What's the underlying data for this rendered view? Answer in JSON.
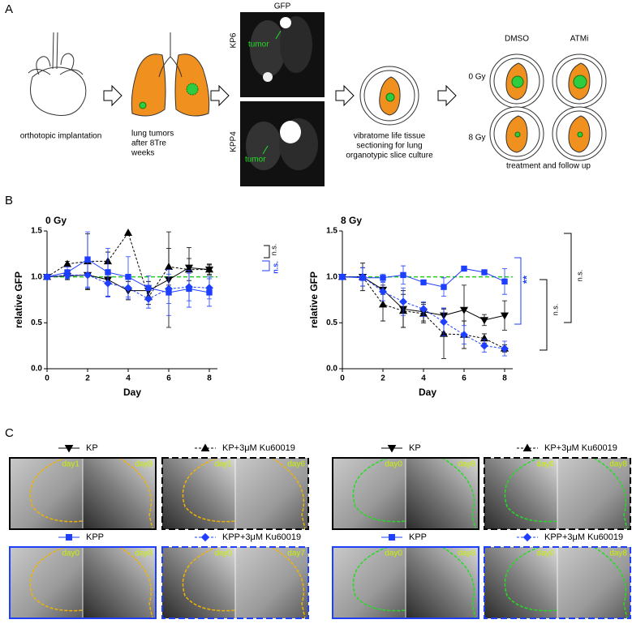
{
  "panel_labels": [
    "A",
    "B",
    "C"
  ],
  "panel_a": {
    "implant_label": "orthotopic implantation",
    "lung_label": [
      "lung tumors",
      "after 8Tre",
      "weeks"
    ],
    "imaging_title": "GFP",
    "images": [
      {
        "name": "KP6",
        "tumor": "tumor"
      },
      {
        "name": "KPP4",
        "tumor": "tumor"
      }
    ],
    "slice_label": [
      "vibratome life tissue",
      "sectioning for lung",
      "organotypic slice culture"
    ],
    "treatments": [
      "DMSO",
      "ATMi"
    ],
    "doses": [
      "0 Gy",
      "8 Gy"
    ],
    "follow_label": "treatment and follow up"
  },
  "chart_data": [
    {
      "type": "line",
      "title": "0 Gy",
      "x_label": "Day",
      "y_label": "relative GFP",
      "x": [
        0,
        1,
        2,
        3,
        4,
        5,
        6,
        7,
        8
      ],
      "xlim": [
        0,
        8.4
      ],
      "xticks": [
        0,
        2,
        4,
        6,
        8
      ],
      "ylim": [
        0,
        1.5
      ],
      "yticks": [
        {
          "value": 0,
          "label": "0.0"
        },
        {
          "value": 0.5,
          "label": "0.5"
        },
        {
          "value": 1,
          "label": "1.0"
        },
        {
          "value": 1.5,
          "label": "1.5"
        }
      ],
      "reference_line": 1,
      "reference_color": "#22cc22",
      "series": [
        {
          "name": "KP",
          "color": "#000000",
          "marker": "triangle-down",
          "dash": false,
          "values": [
            1,
            1.01,
            1.02,
            0.97,
            0.85,
            0.85,
            0.97,
            1.1,
            1.08
          ],
          "errors": [
            0,
            0.04,
            0.16,
            0.18,
            0.1,
            0.1,
            0.52,
            0.22,
            0.06
          ]
        },
        {
          "name": "KP+3μM Ku60019",
          "color": "#000000",
          "marker": "triangle",
          "dash": true,
          "values": [
            1,
            1.14,
            1.17,
            1.17,
            1.48,
            0.78,
            1.11,
            1.08,
            1.08
          ],
          "errors": [
            0,
            0.03,
            0.3,
            0.1,
            0,
            0.08,
            0.2,
            0.12,
            0.05
          ]
        },
        {
          "name": "KPP",
          "color": "#1f3fff",
          "marker": "square",
          "dash": false,
          "values": [
            1,
            1.05,
            1.19,
            1.05,
            1.0,
            0.88,
            0.83,
            0.87,
            0.83
          ],
          "errors": [
            0,
            0.06,
            0.3,
            0.26,
            0.22,
            0.13,
            0.25,
            0.2,
            0.15
          ]
        },
        {
          "name": "KPP+3μM Ku60019",
          "color": "#1f3fff",
          "marker": "diamond",
          "dash": true,
          "values": [
            1,
            1.02,
            1.02,
            0.93,
            0.88,
            0.76,
            0.87,
            0.89,
            0.88
          ],
          "errors": [
            0,
            0.04,
            0.14,
            0.15,
            0.12,
            0.1,
            0.16,
            0.15,
            0.12
          ]
        }
      ],
      "annotations": [
        {
          "text": "n.s.",
          "color": "#000000"
        },
        {
          "text": "n.s.",
          "color": "#1f3fff"
        }
      ]
    },
    {
      "type": "line",
      "title": "8 Gy",
      "x_label": "Day",
      "y_label": "relative GFP",
      "x": [
        0,
        1,
        2,
        3,
        4,
        5,
        6,
        7,
        8
      ],
      "xlim": [
        0,
        8.4
      ],
      "xticks": [
        0,
        2,
        4,
        6,
        8
      ],
      "ylim": [
        0,
        1.5
      ],
      "yticks": [
        {
          "value": 0,
          "label": "0.0"
        },
        {
          "value": 0.5,
          "label": "0.5"
        },
        {
          "value": 1,
          "label": "1.0"
        },
        {
          "value": 1.5,
          "label": "1.5"
        }
      ],
      "reference_line": 1,
      "reference_color": "#22cc22",
      "series": [
        {
          "name": "KP",
          "color": "#000000",
          "marker": "triangle-down",
          "dash": false,
          "values": [
            1,
            1.0,
            0.86,
            0.65,
            0.62,
            0.58,
            0.64,
            0.53,
            0.58
          ],
          "errors": [
            0,
            0.15,
            0.05,
            0.2,
            0.1,
            0.08,
            0.27,
            0.06,
            0.16
          ]
        },
        {
          "name": "KP+3μM Ku60019",
          "color": "#000000",
          "marker": "triangle",
          "dash": true,
          "values": [
            1,
            1.0,
            0.7,
            0.63,
            0.6,
            0.38,
            0.37,
            0.33,
            0.22
          ],
          "errors": [
            0,
            0.1,
            0.18,
            0.18,
            0.1,
            0.27,
            0.15,
            0.05,
            0.04
          ]
        },
        {
          "name": "KPP",
          "color": "#1f3fff",
          "marker": "square",
          "dash": false,
          "values": [
            1,
            0.99,
            0.99,
            1.02,
            0.94,
            0.89,
            1.09,
            1.05,
            0.95
          ],
          "errors": [
            0,
            0.03,
            0.04,
            0.1,
            0.02,
            0.1,
            0.02,
            0.02,
            0.14
          ]
        },
        {
          "name": "KPP+3μM Ku60019",
          "color": "#1f3fff",
          "marker": "diamond",
          "dash": true,
          "values": [
            1,
            1.0,
            0.84,
            0.73,
            0.65,
            0.51,
            0.37,
            0.25,
            0.22
          ],
          "errors": [
            0,
            0.1,
            0.1,
            0.15,
            0.08,
            0.15,
            0.1,
            0.07,
            0.08
          ]
        }
      ],
      "annotations": [
        {
          "text": "**",
          "color": "#1f3fff"
        },
        {
          "text": "n.s.",
          "color": "#000000"
        },
        {
          "text": "n.s.",
          "color": "#000000"
        }
      ]
    }
  ],
  "panel_c": [
    {
      "name": "KP",
      "color": "#000000",
      "marker": "triangle-down",
      "dash": false,
      "days": [
        "day1",
        "day8"
      ]
    },
    {
      "name": "KP+3μM Ku60019",
      "color": "#000000",
      "marker": "triangle",
      "dash": true,
      "days": [
        "day1",
        "day6"
      ]
    },
    {
      "name": "KPP",
      "color": "#1f3fff",
      "marker": "square",
      "dash": false,
      "days": [
        "day0",
        "day8"
      ]
    },
    {
      "name": "KPP+3μM Ku60019",
      "color": "#1f3fff",
      "marker": "diamond",
      "dash": true,
      "days": [
        "day0",
        "day7"
      ]
    },
    {
      "name": "KP",
      "color": "#000000",
      "marker": "triangle-down",
      "dash": false,
      "days": [
        "day0",
        "day8"
      ]
    },
    {
      "name": "KP+3μM Ku60019",
      "color": "#000000",
      "marker": "triangle",
      "dash": true,
      "days": [
        "day0",
        "day8"
      ]
    },
    {
      "name": "KPP",
      "color": "#1f3fff",
      "marker": "square",
      "dash": false,
      "days": [
        "day0",
        "day8"
      ]
    },
    {
      "name": "KPP+3μM Ku60019",
      "color": "#1f3fff",
      "marker": "diamond",
      "dash": true,
      "days": [
        "day0",
        "day8"
      ]
    }
  ]
}
